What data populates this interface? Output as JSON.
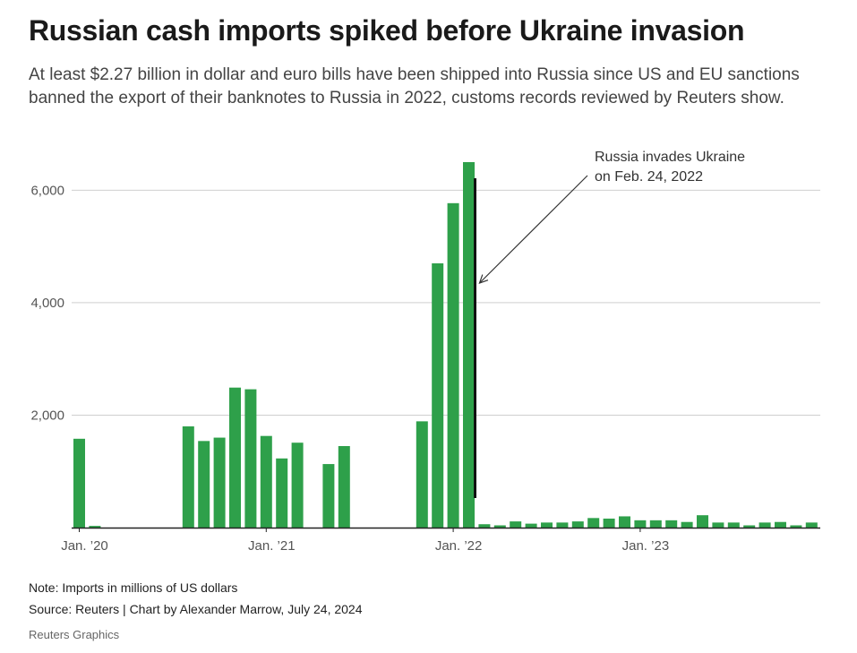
{
  "header": {
    "title": "Russian cash imports spiked before Ukraine invasion",
    "subtitle": "At least $2.27 billion in dollar and euro bills have been shipped into Russia since US and EU sanctions banned the export of their banknotes to Russia in 2022, customs records reviewed by Reuters show."
  },
  "footer": {
    "note": "Note: Imports in millions of US dollars",
    "source": "Source: Reuters | Chart by Alexander Marrow, July 24, 2024",
    "credit": "Reuters Graphics"
  },
  "chart_data": {
    "type": "bar",
    "title": "",
    "xlabel": "",
    "ylabel": "",
    "ylim": [
      0,
      6500
    ],
    "y_ticks": [
      2000,
      4000,
      6000
    ],
    "y_tick_labels": [
      "2,000",
      "4,000",
      "6,000"
    ],
    "grid": true,
    "x_tick_labels": [
      {
        "label": "Jan. ’20",
        "x": "2020-01"
      },
      {
        "label": "Jan. ’21",
        "x": "2021-01"
      },
      {
        "label": "Jan. ’22",
        "x": "2022-01"
      },
      {
        "label": "Jan. ’23",
        "x": "2023-01"
      }
    ],
    "bar_color": "#2ea04a",
    "categories": [
      "2020-01",
      "2020-02",
      "2020-03",
      "2020-04",
      "2020-05",
      "2020-06",
      "2020-07",
      "2020-08",
      "2020-09",
      "2020-10",
      "2020-11",
      "2020-12",
      "2021-01",
      "2021-02",
      "2021-03",
      "2021-04",
      "2021-05",
      "2021-06",
      "2021-07",
      "2021-08",
      "2021-09",
      "2021-10",
      "2021-11",
      "2021-12",
      "2022-01",
      "2022-02",
      "2022-03",
      "2022-04",
      "2022-05",
      "2022-06",
      "2022-07",
      "2022-08",
      "2022-09",
      "2022-10",
      "2022-11",
      "2022-12",
      "2023-01",
      "2023-02",
      "2023-03",
      "2023-04",
      "2023-05",
      "2023-06",
      "2023-07",
      "2023-08",
      "2023-09",
      "2023-10",
      "2023-11",
      "2023-12",
      "2024-01",
      "2024-02"
    ],
    "values": [
      1580,
      30,
      0,
      0,
      0,
      0,
      0,
      1800,
      1540,
      1600,
      2490,
      2460,
      1630,
      1230,
      1510,
      0,
      1130,
      1450,
      0,
      0,
      0,
      0,
      1890,
      4700,
      5770,
      6500,
      60,
      40,
      110,
      70,
      90,
      90,
      110,
      170,
      160,
      200,
      130,
      130,
      130,
      100,
      220,
      90,
      90,
      40,
      90,
      100,
      40,
      90,
      0,
      0
    ],
    "annotation": {
      "text_line1": "Russia invades Ukraine",
      "text_line2": "on Feb. 24, 2022",
      "date": "2022-02-24",
      "marker_color": "#111111"
    }
  }
}
